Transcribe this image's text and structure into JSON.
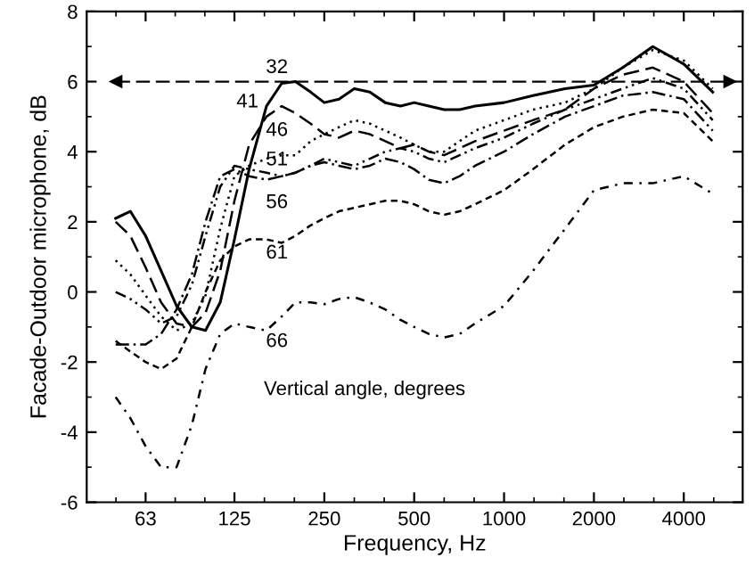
{
  "chart_data": {
    "type": "line",
    "xlabel": "Frequency, Hz",
    "ylabel": "Facade-Outdoor microphone, dB",
    "log": "x",
    "xlim": [
      40,
      6300
    ],
    "xticks": [
      63,
      125,
      250,
      500,
      1000,
      2000,
      4000
    ],
    "ylim": [
      -6,
      8
    ],
    "yticks": [
      -6,
      -4,
      -2,
      0,
      2,
      4,
      6,
      8
    ],
    "grid": false,
    "legend": false,
    "marker": "none",
    "x": [
      50,
      56,
      63,
      71,
      80,
      90,
      100,
      112,
      125,
      140,
      160,
      180,
      200,
      225,
      250,
      280,
      315,
      355,
      400,
      450,
      500,
      560,
      630,
      710,
      800,
      1000,
      1250,
      1600,
      2000,
      2500,
      3150,
      4000,
      5000
    ],
    "series": [
      {
        "color": "#000000",
        "line_style": "solid",
        "values": [
          2.1,
          2.3,
          1.6,
          0.6,
          -0.4,
          -1.0,
          -1.1,
          -0.3,
          1.5,
          3.5,
          5.3,
          5.95,
          6.0,
          5.7,
          5.4,
          5.5,
          5.8,
          5.7,
          5.4,
          5.3,
          5.4,
          5.3,
          5.2,
          5.2,
          5.3,
          5.4,
          5.6,
          5.8,
          5.9,
          6.4,
          7.0,
          6.5,
          5.7
        ]
      },
      {
        "color": "#000000",
        "line_style": "dashed",
        "values": [
          2.0,
          1.6,
          0.7,
          -0.3,
          -0.9,
          -1.0,
          -0.6,
          0.6,
          2.6,
          4.2,
          5.0,
          5.3,
          5.1,
          4.8,
          4.5,
          4.4,
          4.6,
          4.5,
          4.3,
          4.1,
          4.2,
          4.0,
          3.9,
          4.1,
          4.3,
          4.6,
          4.9,
          5.2,
          5.8,
          6.2,
          6.4,
          6.0,
          5.1
        ]
      },
      {
        "color": "#000000",
        "line_style": "dotted",
        "values": [
          0.9,
          0.5,
          -0.1,
          -0.7,
          -1.1,
          -0.9,
          -0.1,
          1.8,
          3.3,
          3.6,
          3.8,
          3.9,
          3.9,
          4.3,
          4.5,
          4.7,
          4.9,
          4.8,
          4.6,
          4.4,
          4.2,
          4.0,
          4.0,
          4.3,
          4.6,
          4.9,
          5.2,
          5.4,
          5.8,
          6.4,
          6.9,
          6.6,
          5.8
        ]
      },
      {
        "color": "#000000",
        "line_style": "dashdotdot",
        "values": [
          0.0,
          -0.2,
          -0.5,
          -0.9,
          -0.7,
          0.2,
          1.6,
          3.0,
          3.6,
          3.5,
          3.4,
          3.3,
          3.4,
          3.6,
          3.8,
          3.7,
          3.6,
          3.8,
          4.0,
          4.1,
          4.0,
          3.8,
          3.7,
          3.9,
          4.1,
          4.4,
          4.8,
          5.2,
          5.5,
          5.8,
          6.1,
          5.8,
          4.9
        ]
      },
      {
        "color": "#000000",
        "line_style": "dashdot",
        "values": [
          -1.5,
          -1.5,
          -1.5,
          -1.2,
          -0.5,
          0.5,
          2.0,
          3.3,
          3.5,
          3.3,
          3.2,
          3.3,
          3.4,
          3.6,
          3.7,
          3.6,
          3.5,
          3.6,
          3.8,
          3.7,
          3.5,
          3.2,
          3.1,
          3.3,
          3.6,
          4.0,
          4.5,
          5.0,
          5.3,
          5.6,
          5.7,
          5.5,
          4.6
        ]
      },
      {
        "color": "#000000",
        "line_style": "shortdash",
        "values": [
          -1.4,
          -1.7,
          -2.0,
          -2.2,
          -1.9,
          -1.0,
          0.0,
          0.9,
          1.3,
          1.5,
          1.5,
          1.4,
          1.6,
          1.9,
          2.1,
          2.3,
          2.4,
          2.5,
          2.6,
          2.6,
          2.5,
          2.3,
          2.2,
          2.3,
          2.5,
          2.9,
          3.5,
          4.2,
          4.7,
          5.0,
          5.2,
          5.1,
          4.3
        ]
      },
      {
        "color": "#000000",
        "line_style": "loosedashdot",
        "values": [
          -3.0,
          -3.6,
          -4.4,
          -5.0,
          -5.0,
          -3.8,
          -2.2,
          -1.2,
          -0.9,
          -1.0,
          -1.1,
          -0.7,
          -0.3,
          -0.3,
          -0.35,
          -0.2,
          -0.15,
          -0.3,
          -0.5,
          -0.8,
          -1.0,
          -1.2,
          -1.3,
          -1.2,
          -0.9,
          -0.4,
          0.6,
          1.8,
          2.9,
          3.1,
          3.1,
          3.3,
          2.8
        ]
      }
    ],
    "ref_lines": [
      {
        "axis": "y",
        "value": 6,
        "line_style": "dashed",
        "color": "#000000"
      }
    ],
    "annotations": [
      "32",
      "41",
      "46",
      "51",
      "56",
      "61",
      "66",
      "Vertical angle, degrees"
    ]
  }
}
